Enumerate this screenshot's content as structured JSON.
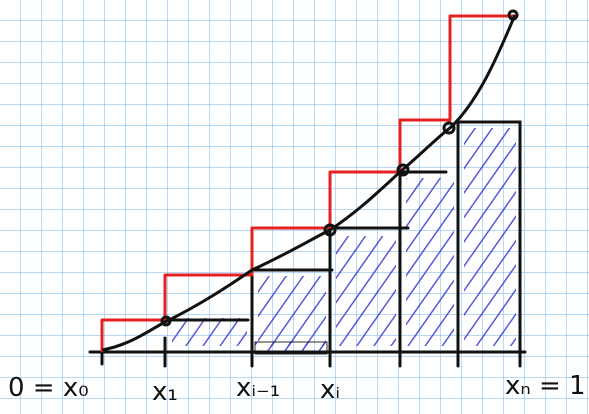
{
  "labels": {
    "x0": "0 = x₀",
    "x1": "x₁",
    "xim1": "xᵢ₋₁",
    "xi": "xᵢ",
    "xn": "xₙ = 1"
  }
}
